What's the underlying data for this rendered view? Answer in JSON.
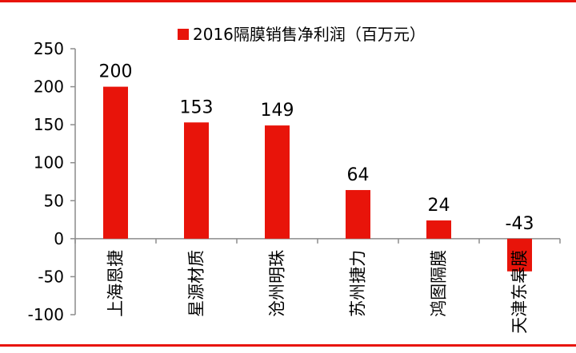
{
  "chart_data": {
    "type": "bar",
    "title": "",
    "xlabel": "",
    "ylabel": "",
    "categories": [
      "上海恩捷",
      "星源材质",
      "沧州明珠",
      "苏州捷力",
      "鸿图隔膜",
      "天津东皋膜"
    ],
    "series": [
      {
        "name": "2016隔膜销售净利润（百万元）",
        "values": [
          200,
          153,
          149,
          64,
          24,
          -43
        ],
        "labels": [
          "200",
          "153",
          "149",
          "64",
          "24",
          "-43"
        ]
      }
    ],
    "ylim": [
      -100,
      250
    ],
    "yticks": [
      250,
      200,
      150,
      100,
      50,
      0,
      -50,
      -100
    ],
    "ytick_labels": [
      "250",
      "200",
      "150",
      "100",
      "50",
      "0",
      "-50",
      "-100"
    ],
    "grid": false,
    "legend_position": "top-center",
    "bar_color": "#e8140a",
    "rule_color": "#e8140a"
  }
}
